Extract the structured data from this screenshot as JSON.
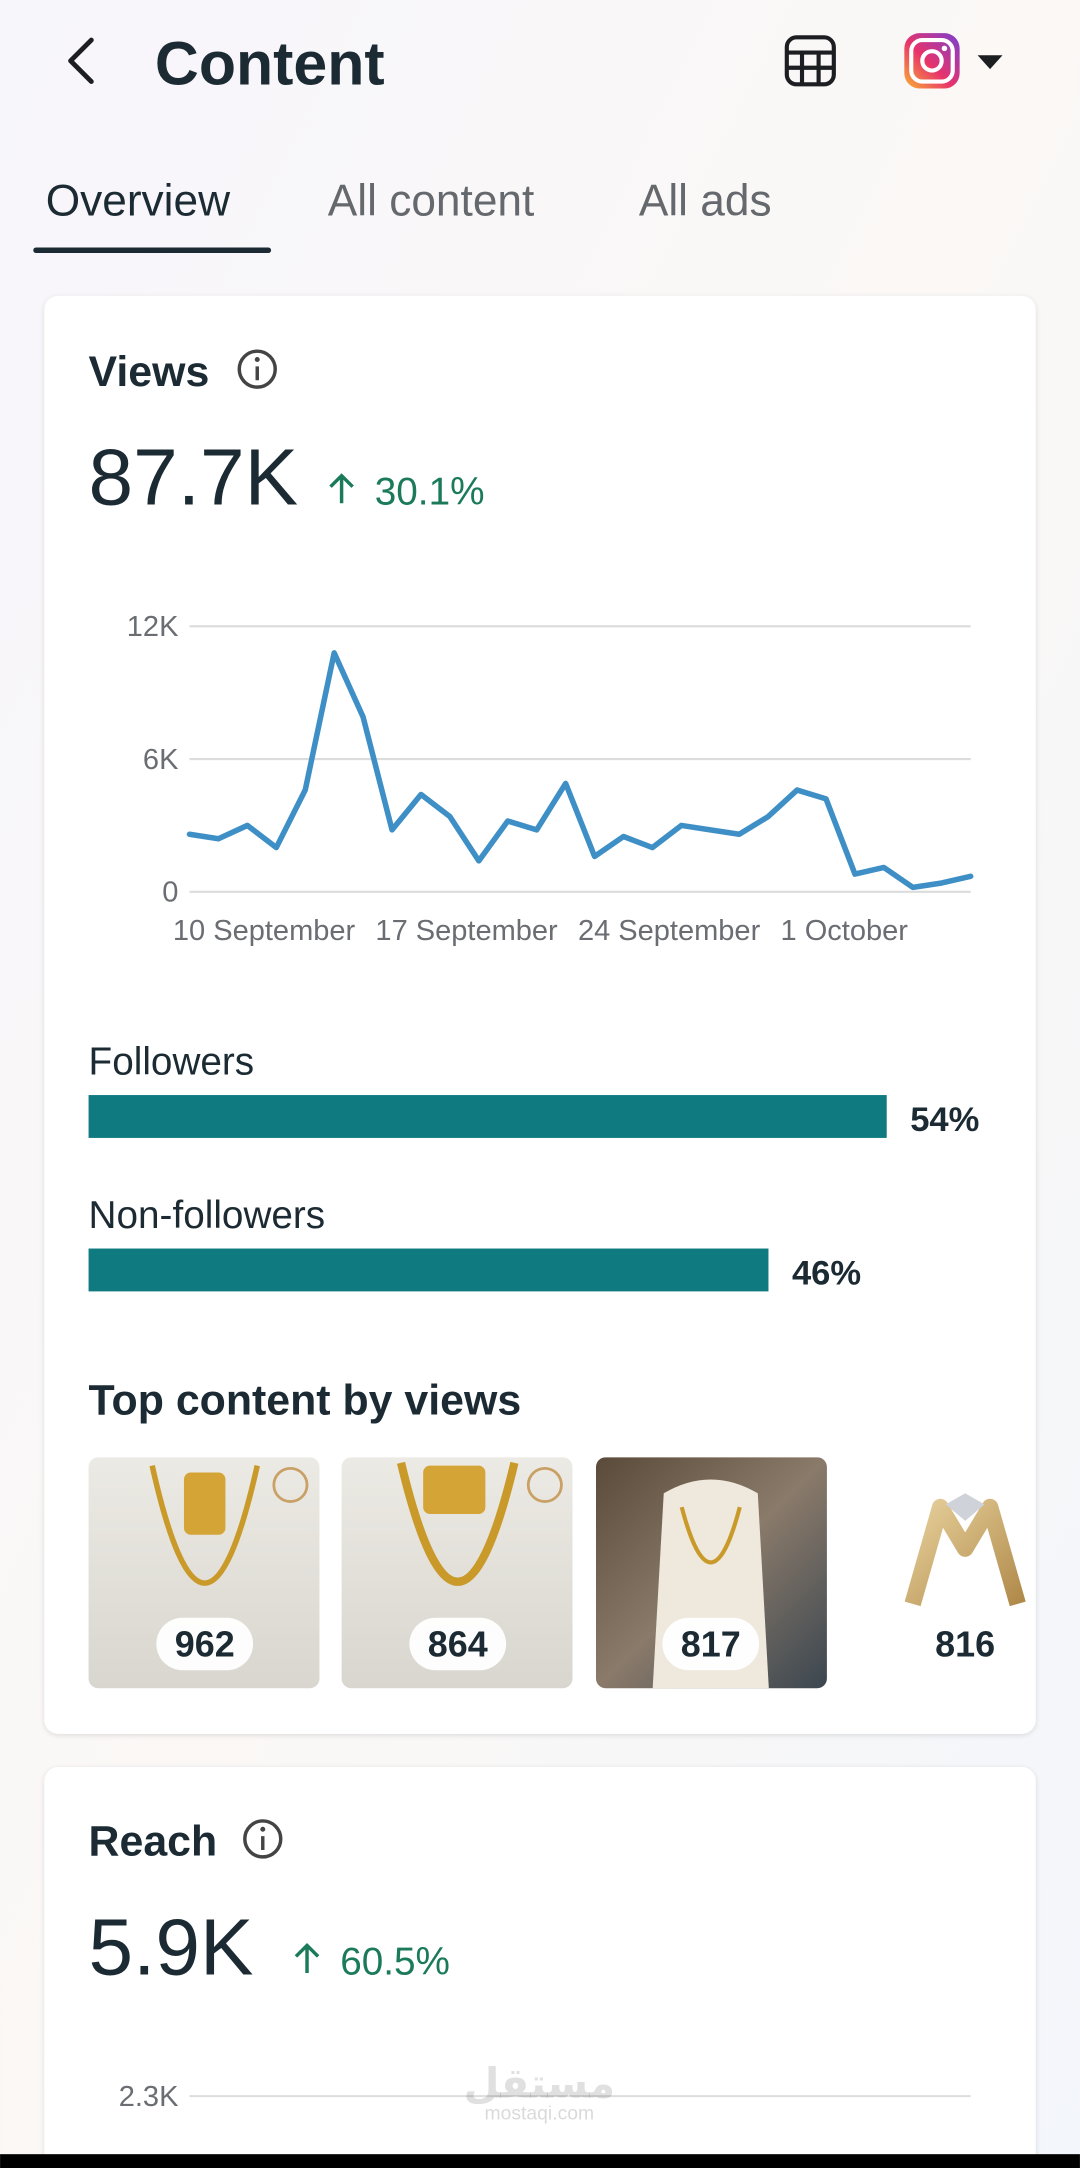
{
  "header": {
    "title": "Content"
  },
  "tabs": [
    "Overview",
    "All content",
    "All ads"
  ],
  "views": {
    "title": "Views",
    "total": "87.7K",
    "change": "30.1%",
    "chart": {
      "type": "line",
      "categories": [
        "10 September",
        null,
        null,
        null,
        null,
        null,
        null,
        "17 September",
        null,
        null,
        null,
        null,
        null,
        null,
        "24 September",
        null,
        null,
        null,
        null,
        null,
        null,
        "1 October",
        null,
        null,
        null,
        null,
        null,
        null
      ],
      "values": [
        2600,
        2400,
        3000,
        2000,
        4600,
        10800,
        7900,
        2800,
        4400,
        3400,
        1400,
        3200,
        2800,
        4900,
        1600,
        2500,
        2000,
        3000,
        2800,
        2600,
        3400,
        4600,
        4200,
        800,
        1100,
        200,
        400,
        700
      ],
      "color": "#3f8fc7",
      "ylim": [
        0,
        12000
      ],
      "yticks": [
        0,
        {
          "value": 6000,
          "label": "6K"
        },
        {
          "value": 12000,
          "label": "12K"
        }
      ],
      "grid": true
    },
    "audience": {
      "type": "bar",
      "categories": [
        "Followers",
        "Non-followers"
      ],
      "values": [
        54,
        46
      ],
      "value_labels": [
        "54%",
        "46%"
      ],
      "color": "#0f7a80"
    },
    "top_content": {
      "title": "Top content by views",
      "items": [
        962,
        864,
        817,
        816
      ]
    }
  },
  "reach": {
    "title": "Reach",
    "total": "5.9K",
    "change": "60.5%",
    "chart": {
      "yticks": [
        {
          "value": 2300,
          "label": "2.3K"
        }
      ]
    }
  },
  "watermark": {
    "arabic": "مستقل",
    "latin": "mostaqi.com"
  }
}
